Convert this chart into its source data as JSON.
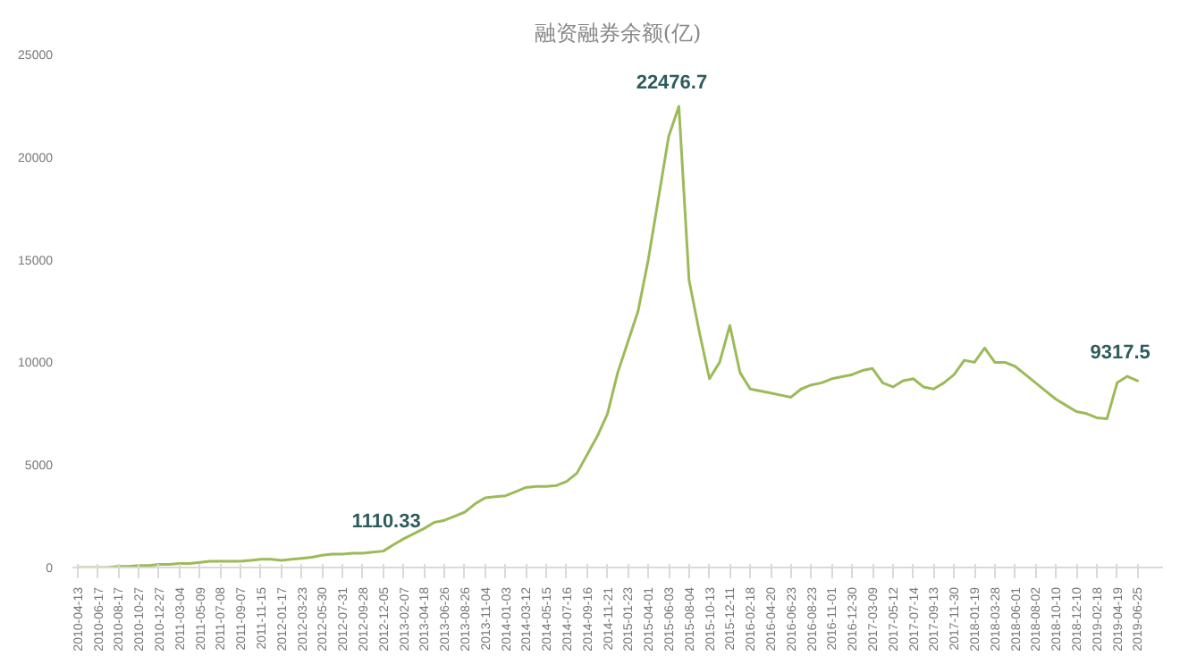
{
  "chart_data": {
    "type": "line",
    "title": "融资融券余额(亿)",
    "categories": [
      "2010-04-13",
      null,
      "2010-06-17",
      null,
      "2010-08-17",
      null,
      "2010-10-27",
      null,
      "2010-12-27",
      null,
      "2011-03-04",
      null,
      "2011-05-09",
      null,
      "2011-07-08",
      null,
      "2011-09-07",
      null,
      "2011-11-15",
      null,
      "2012-01-17",
      null,
      "2012-03-23",
      null,
      "2012-05-30",
      null,
      "2012-07-31",
      null,
      "2012-09-28",
      null,
      "2012-12-05",
      null,
      "2013-02-07",
      null,
      "2013-04-18",
      null,
      "2013-06-26",
      null,
      "2013-08-26",
      null,
      "2013-11-04",
      null,
      "2014-01-03",
      null,
      "2014-03-12",
      null,
      "2014-05-15",
      null,
      "2014-07-16",
      null,
      "2014-09-16",
      null,
      "2014-11-21",
      null,
      "2015-01-23",
      null,
      "2015-04-01",
      null,
      "2015-06-03",
      null,
      "2015-08-04",
      null,
      "2015-10-13",
      null,
      "2015-12-11",
      null,
      "2016-02-18",
      null,
      "2016-04-20",
      null,
      "2016-06-23",
      null,
      "2016-08-23",
      null,
      "2016-11-01",
      null,
      "2016-12-30",
      null,
      "2017-03-09",
      null,
      "2017-05-12",
      null,
      "2017-07-14",
      null,
      "2017-09-13",
      null,
      "2017-11-30",
      null,
      "2018-01-19",
      null,
      "2018-03-28",
      null,
      "2018-06-01",
      null,
      "2018-08-02",
      null,
      "2018-10-10",
      null,
      "2018-12-10",
      null,
      "2019-02-18",
      null,
      "2019-04-19",
      null,
      "2019-06-25"
    ],
    "series": [
      {
        "color": "#9bbb59",
        "values": [
          0,
          0,
          0,
          0,
          50,
          50,
          100,
          100,
          150,
          150,
          200,
          200,
          250,
          300,
          300,
          300,
          300,
          350,
          400,
          400,
          350,
          400,
          450,
          500,
          600,
          650,
          650,
          700,
          700,
          750,
          800,
          1110.33,
          1400,
          1650,
          1900,
          2200,
          2300,
          2500,
          2700,
          3100,
          3400,
          3450,
          3500,
          3700,
          3900,
          3950,
          3950,
          4000,
          4200,
          4600,
          5500,
          6400,
          7500,
          9500,
          11000,
          12500,
          15000,
          18000,
          21000,
          22476.7,
          14000,
          11500,
          9200,
          10000,
          11800,
          9500,
          8700,
          8600,
          8500,
          8400,
          8300,
          8700,
          8900,
          9000,
          9200,
          9300,
          9400,
          9600,
          9700,
          9000,
          8800,
          9100,
          9200,
          8800,
          8700,
          9000,
          9400,
          10100,
          10000,
          10700,
          10000,
          10000,
          9800,
          9400,
          9000,
          8600,
          8200,
          7900,
          7600,
          7500,
          7300,
          7250,
          9000,
          9317.5,
          9100
        ],
        "value_labels": [
          null,
          null,
          null,
          null,
          null,
          null,
          null,
          null,
          null,
          null,
          null,
          null,
          null,
          null,
          null,
          null,
          null,
          null,
          null,
          null,
          null,
          null,
          null,
          null,
          null,
          null,
          null,
          null,
          null,
          null,
          null,
          "1110.33",
          null,
          null,
          null,
          null,
          null,
          null,
          null,
          null,
          null,
          null,
          null,
          null,
          null,
          null,
          null,
          null,
          null,
          null,
          null,
          null,
          null,
          null,
          null,
          null,
          null,
          null,
          null,
          "22476.7",
          null,
          null,
          null,
          null,
          null,
          null,
          null,
          null,
          null,
          null,
          null,
          null,
          null,
          null,
          null,
          null,
          null,
          null,
          null,
          null,
          null,
          null,
          null,
          null,
          null,
          null,
          null,
          null,
          null,
          null,
          null,
          null,
          null,
          null,
          null,
          null,
          null,
          null,
          null,
          null,
          null,
          null,
          null,
          "9317.5",
          null
        ]
      }
    ],
    "ylim": [
      0,
      25000
    ],
    "yticks": [
      0,
      5000,
      10000,
      15000,
      20000,
      25000
    ],
    "grid": false,
    "marker": "none",
    "line_style": "solid"
  }
}
